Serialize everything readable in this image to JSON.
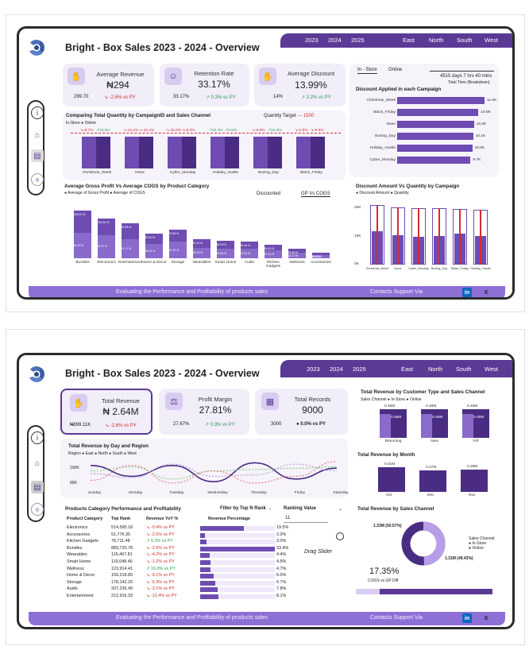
{
  "colors": {
    "accent": "#5b3a96",
    "bar": "#6e4cb2",
    "bar_dark": "#4a2d83",
    "red": "#d62b2b",
    "green": "#2e9a4e",
    "card": "#f1edf9"
  },
  "nav": {
    "years": [
      "2023",
      "2024",
      "2025"
    ],
    "regions": [
      "East",
      "North",
      "South",
      "West"
    ]
  },
  "footer": {
    "tagline": "Evaluating the Performance and Profitability of products sales",
    "contacts": "Contacts Support Via",
    "linkedin": "in",
    "x": "X"
  },
  "back_icon": "◁",
  "p1": {
    "title": "Bright - Box Sales 2023 - 2024 - Overview",
    "kpis": [
      {
        "title": "Average Revenue",
        "value": "₦294",
        "left": "299.70",
        "change": "-2.6% vs PY",
        "trend": "down"
      },
      {
        "title": "Retention Rate",
        "value": "33.17%",
        "left": "33.17%",
        "change": "0.3% vs PY",
        "trend": "up"
      },
      {
        "title": "Average Discount",
        "value": "13.99%",
        "left": "14%",
        "change": "2.2% vs PY",
        "trend": "up"
      }
    ],
    "toggle": {
      "a": "In - Store",
      "b": "Online"
    },
    "time": {
      "value": "4515 days 7 hrs 40 mins",
      "label": "Total Time (Breakdown)"
    },
    "discount_bars": {
      "title": "Discount Applied in each Campaign",
      "items": [
        {
          "label": "Christmas_Week",
          "value": "11.6K",
          "pct": 1.0
        },
        {
          "label": "Black_Friday",
          "value": "10.8K",
          "pct": 0.93
        },
        {
          "label": "None",
          "value": "10.2K",
          "pct": 0.88
        },
        {
          "label": "Boxing_Day",
          "value": "10.1K",
          "pct": 0.87
        },
        {
          "label": "Holiday_Hustle",
          "value": "10.0K",
          "pct": 0.86
        },
        {
          "label": "Cyber_Monday",
          "value": "9.7K",
          "pct": 0.84
        }
      ]
    },
    "campaign_chart": {
      "title": "Comparing Total Quantity by CampaignID and Sales Channel",
      "legend": [
        "In-Store",
        "Online"
      ],
      "target_label": "Quantity Target",
      "target_value": "1500",
      "categories": [
        "Christmas_Week",
        "None",
        "Cyber_Monday",
        "Holiday_Hustle",
        "Boxing_Day",
        "Black_Friday"
      ],
      "badges": [
        [
          "-9.7%",
          "13.5%"
        ],
        [
          "-12.2%",
          "-10.4%"
        ],
        [
          "-15.0%",
          "-8.3%"
        ],
        [
          "12.4%",
          "2.8%"
        ],
        [
          "-9.5%",
          "10.4%"
        ],
        [
          "-2.8%",
          "-9.6%"
        ]
      ]
    },
    "gp_chart": {
      "title": "Average Gross Profit Vs Average COGS by Product Category",
      "legend": [
        "Average of Gross Profit",
        "Average of COGS"
      ],
      "tab_a": "Discounted",
      "tab_b": "GP Vs COGS",
      "categories": [
        "Bundles",
        "Electronics",
        "Entertainment",
        "Home & Decor",
        "Storage",
        "Wearables",
        "Smart Home",
        "Audio",
        "Kitchen Gadgets",
        "Wellness",
        "Accessories"
      ],
      "top": [
        "126.21 N",
        "104.64 N",
        "90.88 N",
        "65.00 N",
        "75.88 N",
        "50.20 N",
        "45.09 N",
        "43.44 N",
        "35.00 N",
        "25.00 N",
        "15.00 N"
      ],
      "bottom": [
        "66.52 N",
        "60.57 N",
        "51.17 N",
        "36.61 N",
        "42.91 N",
        "28.44 N",
        "25.84 N",
        "24.51 N",
        "20.14 N",
        "14.12 N",
        "9.06 N"
      ],
      "gp": [
        126,
        105,
        91,
        65,
        76,
        50,
        45,
        43,
        35,
        25,
        15
      ],
      "cogs": [
        67,
        61,
        51,
        37,
        43,
        28,
        26,
        25,
        20,
        14,
        9
      ]
    },
    "qty_chart": {
      "title": "Discount Amount Vs Quantity by Campaign",
      "legend": [
        "Discount Amount",
        "Quantity"
      ],
      "yticks": [
        "20K",
        "10K",
        "0K"
      ],
      "categories": [
        "Christmas_Week",
        "None",
        "Cyber_Monday",
        "Boxing_Day",
        "Black_Friday",
        "Holiday_Hustle"
      ],
      "quantity": [
        20.8,
        20.0,
        19.7,
        19.6,
        19.5,
        19.3
      ],
      "discount": [
        11.6,
        10.2,
        9.7,
        10.1,
        10.8,
        10.0
      ]
    }
  },
  "p2": {
    "title": "Bright - Box Sales 2023 - 2024 - Overview",
    "kpis": [
      {
        "title": "Total Revenue",
        "value": "₦ 2.64M",
        "left": "₦899.11K",
        "change": "-2.6% vs PY",
        "trend": "down"
      },
      {
        "title": "Profit Margin",
        "value": "27.81%",
        "left": "27.67%",
        "change": "0.3% vs PY",
        "trend": "up"
      },
      {
        "title": "Total Records",
        "value": "9000",
        "left": "3000",
        "change": "0.0% vs PY",
        "trend": "flat"
      }
    ],
    "line_chart": {
      "title": "Total Revenue by Day and Region",
      "legend_label": "Region",
      "regions": [
        "East",
        "North",
        "South",
        "West"
      ],
      "yticks": [
        "100K",
        "80K"
      ],
      "days": [
        "Sunday",
        "Monday",
        "Tuesday",
        "Wednesday",
        "Thursday",
        "Friday",
        "Saturday"
      ],
      "series": [
        {
          "name": "East",
          "values": [
            96,
            88,
            96,
            84,
            98,
            86,
            94
          ]
        },
        {
          "name": "North",
          "values": [
            92,
            95,
            86,
            92,
            93,
            94,
            95
          ]
        },
        {
          "name": "South",
          "values": [
            90,
            87,
            97,
            88,
            89,
            97,
            92
          ]
        },
        {
          "name": "West",
          "values": [
            85,
            96,
            83,
            92,
            83,
            88,
            99
          ]
        }
      ]
    },
    "cust_chart": {
      "title": "Total Revenue by Customer Type and Sales Channel",
      "legend": [
        "Sales Channel",
        "In-Store",
        "Online"
      ],
      "categories": [
        "Returning",
        "New",
        "VIP"
      ],
      "totals": [
        "0.48M",
        "0.48M",
        "0.48M"
      ],
      "inner": [
        "0.48M",
        "0.46M",
        "0.46M"
      ]
    },
    "month_chart": {
      "title": "Total Revenue by Month",
      "categories": [
        "Oct",
        "Dec",
        "Nov"
      ],
      "values": [
        "0.31M",
        "0.27M",
        "0.28M"
      ],
      "num": [
        0.31,
        0.27,
        0.28
      ]
    },
    "table": {
      "title": "Products Category Performance and Profitability",
      "headers": [
        "Product Category",
        "Top Rank",
        "Revenue YoY %",
        "Revenue Percentage"
      ],
      "filter_label": "Filter by Top N Rank →",
      "ranking_label": "Ranking Value",
      "ranking_value": "11",
      "drag": "Drag Slider",
      "rows": [
        {
          "cat": "Electronics",
          "rev": "514,595.18",
          "yoy": "-0.4% vs PY",
          "up": false,
          "pct": "19.5%",
          "p": 19.5
        },
        {
          "cat": "Accessories",
          "rev": "51,776.35",
          "yoy": "-2.5% vs PY",
          "up": false,
          "pct": "2.0%",
          "p": 2.0
        },
        {
          "cat": "Kitchen Gadgets",
          "rev": "78,711.48",
          "yoy": "6.3% vs PY",
          "up": true,
          "pct": "3.0%",
          "p": 3.0
        },
        {
          "cat": "Bundles",
          "rev": "883,720.78",
          "yoy": "-2.9% vs PY",
          "up": false,
          "pct": "33.4%",
          "p": 33.4
        },
        {
          "cat": "Wearables",
          "rev": "115,467.81",
          "yoy": "-4.2% vs PY",
          "up": false,
          "pct": "4.4%",
          "p": 4.4
        },
        {
          "cat": "Smart Home",
          "rev": "119,048.46",
          "yoy": "-1.2% vs PY",
          "up": false,
          "pct": "4.5%",
          "p": 4.5
        },
        {
          "cat": "Wellness",
          "rev": "123,914.41",
          "yoy": "16.0% vs PY",
          "up": true,
          "pct": "4.7%",
          "p": 4.7
        },
        {
          "cat": "Home & Decor",
          "rev": "159,218.89",
          "yoy": "-9.1% vs PY",
          "up": false,
          "pct": "6.0%",
          "p": 6.0
        },
        {
          "cat": "Storage",
          "rev": "178,142.20",
          "yoy": "-5.3% vs PY",
          "up": false,
          "pct": "6.7%",
          "p": 6.7
        },
        {
          "cat": "Audio",
          "rev": "207,236.49",
          "yoy": "-3.1% vs PY",
          "up": false,
          "pct": "7.8%",
          "p": 7.8
        },
        {
          "cat": "Entertainment",
          "rev": "212,916.33",
          "yoy": "-12.4% vs PY",
          "up": false,
          "pct": "8.1%",
          "p": 8.1
        }
      ]
    },
    "donut": {
      "title": "Total Revenue by Sales Channel",
      "a": "1.33M (50.57%)",
      "b": "1.31M (49.43%)",
      "legend": [
        "Sales Channel",
        "In-Store",
        "Online"
      ],
      "cogs_value": "17.35%",
      "cogs_label": "COGS vs GP Diff",
      "shares": [
        50.57,
        49.43
      ]
    }
  }
}
